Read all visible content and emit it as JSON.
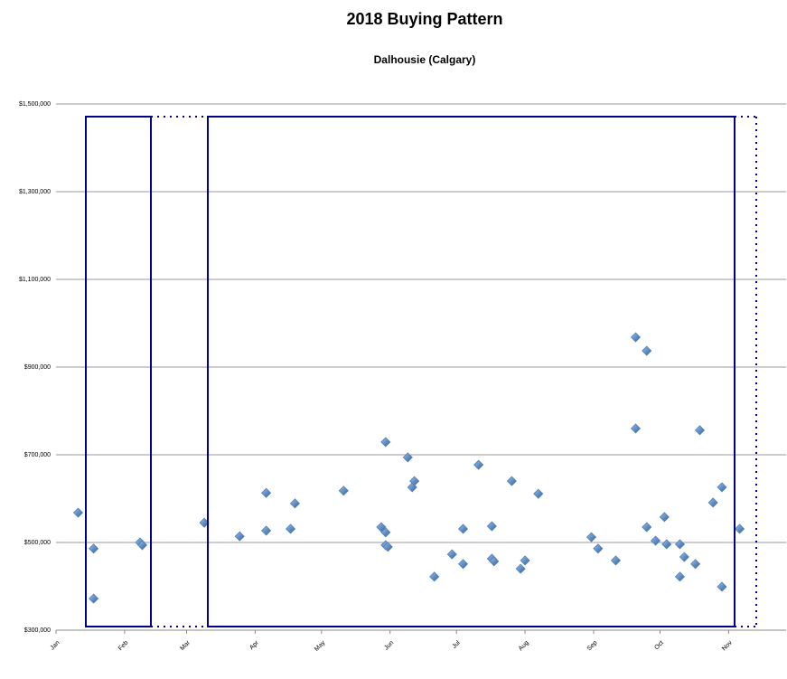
{
  "chart_data": {
    "type": "scatter",
    "title": "2018 Buying Pattern",
    "subtitle": "Dalhousie (Calgary)",
    "x": [
      10,
      17,
      17,
      38,
      39,
      67,
      83,
      95,
      95,
      106,
      108,
      130,
      147,
      149,
      149,
      149,
      150,
      159,
      161,
      162,
      171,
      179,
      184,
      184,
      191,
      197,
      197,
      198,
      206,
      210,
      212,
      218,
      242,
      245,
      253,
      262,
      262,
      267,
      267,
      271,
      275,
      276,
      282,
      282,
      284,
      289,
      291,
      297,
      301,
      301,
      309
    ],
    "series": [
      {
        "color": "#4f81bd",
        "values": [
          568000,
          486000,
          372000,
          500000,
          494000,
          545000,
          514000,
          613000,
          527000,
          531000,
          589000,
          618000,
          535000,
          523000,
          729000,
          494000,
          490000,
          694000,
          626000,
          640000,
          422000,
          473000,
          451000,
          531000,
          677000,
          537000,
          463000,
          457000,
          640000,
          440000,
          459000,
          611000,
          512000,
          486000,
          459000,
          968000,
          760000,
          937000,
          535000,
          504000,
          558000,
          496000,
          422000,
          496000,
          467000,
          451000,
          756000,
          591000,
          626000,
          399000,
          531000
        ]
      }
    ],
    "xlim": [
      0,
      330
    ],
    "xticks": [
      {
        "value": 0,
        "label": "Jan"
      },
      {
        "value": 31,
        "label": "Feb"
      },
      {
        "value": 59,
        "label": "Mar"
      },
      {
        "value": 90,
        "label": "Apr"
      },
      {
        "value": 120,
        "label": "May"
      },
      {
        "value": 151,
        "label": "Jun"
      },
      {
        "value": 181,
        "label": "Jul"
      },
      {
        "value": 212,
        "label": "Aug"
      },
      {
        "value": 243,
        "label": "Sep"
      },
      {
        "value": 273,
        "label": "Oct"
      },
      {
        "value": 304,
        "label": "Nov"
      }
    ],
    "ylim": [
      300000,
      1500000
    ],
    "yticks": [
      {
        "value": 300000,
        "label": "$300,000"
      },
      {
        "value": 500000,
        "label": "$500,000"
      },
      {
        "value": 700000,
        "label": "$700,000"
      },
      {
        "value": 900000,
        "label": "$900,000"
      },
      {
        "value": 1100000,
        "label": "$1,100,000"
      },
      {
        "value": 1300000,
        "label": "$1,300,000"
      },
      {
        "value": 1500000,
        "label": "$1,500,000"
      }
    ],
    "grid": true
  }
}
